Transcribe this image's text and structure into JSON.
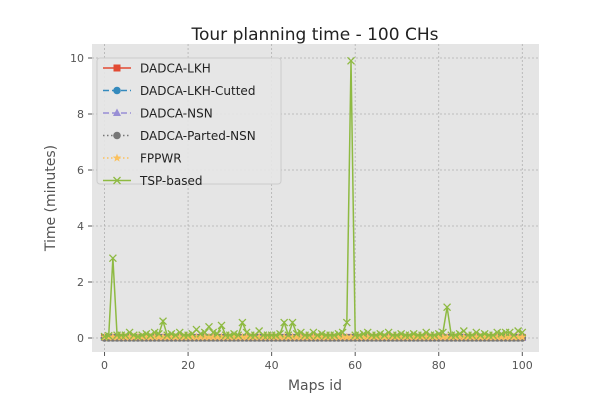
{
  "chart_data": {
    "type": "line",
    "title": "Tour planning time - 100 CHs",
    "xlabel": "Maps id",
    "ylabel": "Time (minutes)",
    "xlim": [
      -3,
      104
    ],
    "ylim": [
      -0.5,
      10.5
    ],
    "xticks": [
      0,
      20,
      40,
      60,
      80,
      100
    ],
    "yticks": [
      0,
      2,
      4,
      6,
      8,
      10
    ],
    "grid": true,
    "legend_position": "upper-left",
    "series": [
      {
        "name": "DADCA-LKH",
        "color": "#E24A33",
        "marker": "square",
        "dash": "solid",
        "x_range": [
          0,
          100
        ],
        "values": [
          0.02
        ]
      },
      {
        "name": "DADCA-LKH-Cutted",
        "color": "#348ABD",
        "marker": "circle",
        "dash": "dashed",
        "x_range": [
          0,
          100
        ],
        "values": [
          0.01
        ]
      },
      {
        "name": "DADCA-NSN",
        "color": "#988ED5",
        "marker": "triangle",
        "dash": "dashed",
        "x_range": [
          0,
          100
        ],
        "values": [
          0.0
        ]
      },
      {
        "name": "DADCA-Parted-NSN",
        "color": "#777777",
        "marker": "circle",
        "dash": "dotted",
        "x_range": [
          0,
          100
        ],
        "values": [
          0.0
        ]
      },
      {
        "name": "FPPWR",
        "color": "#FBC15E",
        "marker": "star",
        "dash": "dotted",
        "x_range": [
          0,
          100
        ],
        "values": [
          0.03
        ]
      },
      {
        "name": "TSP-based",
        "color": "#8EBA42",
        "marker": "x",
        "dash": "solid",
        "x_range": [
          0,
          100
        ],
        "values": [
          0.05,
          0.08,
          2.85,
          0.1,
          0.1,
          0.1,
          0.2,
          0.1,
          0.05,
          0.1,
          0.15,
          0.1,
          0.2,
          0.15,
          0.6,
          0.1,
          0.15,
          0.1,
          0.2,
          0.1,
          0.1,
          0.15,
          0.3,
          0.15,
          0.2,
          0.4,
          0.2,
          0.15,
          0.45,
          0.1,
          0.1,
          0.15,
          0.1,
          0.55,
          0.2,
          0.1,
          0.1,
          0.25,
          0.1,
          0.1,
          0.1,
          0.1,
          0.15,
          0.55,
          0.1,
          0.55,
          0.15,
          0.2,
          0.1,
          0.1,
          0.2,
          0.1,
          0.15,
          0.1,
          0.1,
          0.1,
          0.15,
          0.2,
          0.55,
          9.9,
          0.1,
          0.1,
          0.15,
          0.2,
          0.1,
          0.1,
          0.15,
          0.1,
          0.2,
          0.1,
          0.1,
          0.15,
          0.1,
          0.1,
          0.15,
          0.1,
          0.1,
          0.2,
          0.1,
          0.1,
          0.15,
          0.2,
          1.1,
          0.1,
          0.1,
          0.15,
          0.25,
          0.1,
          0.1,
          0.2,
          0.1,
          0.15,
          0.1,
          0.1,
          0.2,
          0.15,
          0.2,
          0.2,
          0.1,
          0.25,
          0.2
        ]
      }
    ]
  }
}
